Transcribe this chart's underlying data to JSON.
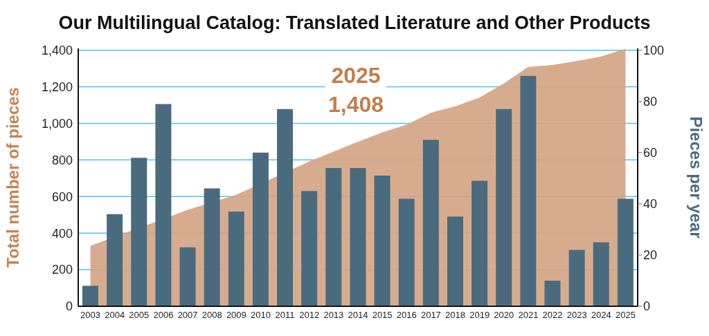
{
  "chart_data": {
    "type": "bar",
    "title": "Our Multilingual Catalog: Translated Literature and Other Products",
    "ylabel": "Total number of pieces",
    "y2label": "Pieces per year",
    "categories": [
      "2003",
      "2004",
      "2005",
      "2006",
      "2007",
      "2008",
      "2009",
      "2010",
      "2011",
      "2012",
      "2013",
      "2014",
      "2015",
      "2016",
      "2017",
      "2018",
      "2019",
      "2020",
      "2021",
      "2022",
      "2023",
      "2024",
      "2025"
    ],
    "series": [
      {
        "type": "area",
        "color": "#d4a584",
        "values": [
          331,
          null,
          null,
          null,
          527,
          null,
          610,
          null,
          null,
          792,
          846,
          900,
          951,
          993,
          1058,
          1093,
          1142,
          1219,
          1309,
          1319,
          1341,
          1366,
          1408
        ]
      },
      {
        "axis": "y2",
        "color": "#4a6b7e",
        "values": [
          8,
          36,
          58,
          79,
          23,
          46,
          37,
          60,
          77,
          45,
          54,
          54,
          51,
          42,
          65,
          35,
          49,
          77,
          90,
          10,
          22,
          25,
          42
        ]
      }
    ],
    "ylim": [
      0,
      1410
    ],
    "yticks": [
      0,
      200,
      400,
      600,
      800,
      {
        "value": 1000,
        "label": "1,000"
      },
      {
        "value": 1200,
        "label": "1,200"
      },
      {
        "value": 1400,
        "label": "1,400"
      }
    ],
    "y2lim": [
      0,
      100.7
    ],
    "y2ticks": [
      0,
      20,
      40,
      60,
      80,
      100
    ],
    "grid": "y",
    "legend": false,
    "annotations": [
      "2025",
      "1,408"
    ]
  }
}
